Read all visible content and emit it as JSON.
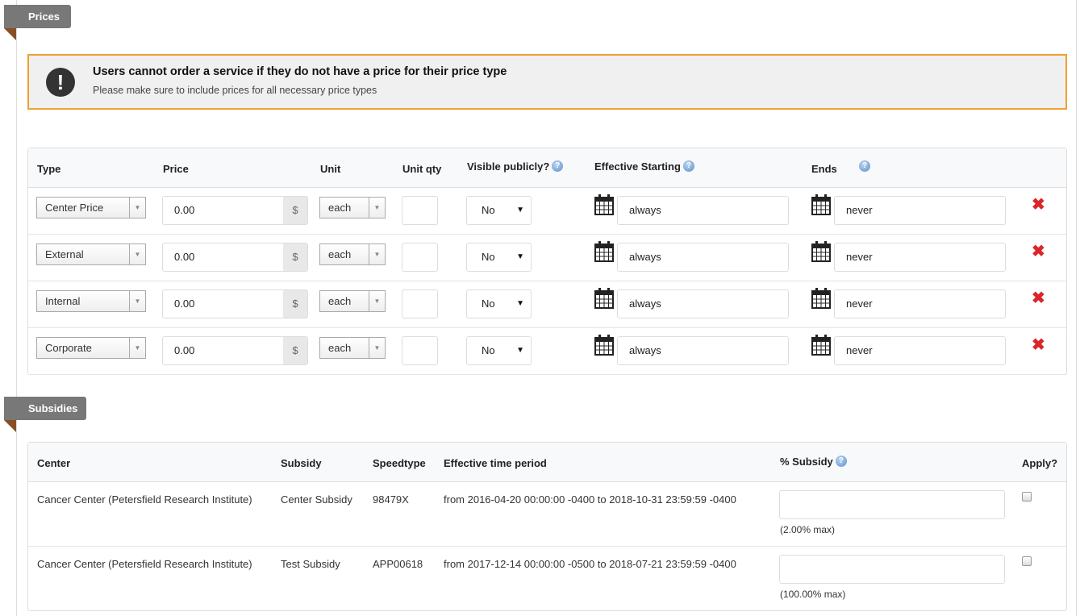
{
  "prices_section": {
    "title": "Prices"
  },
  "alert": {
    "icon": "exclamation-icon",
    "title": "Users cannot order a service if they do not have a price for their price type",
    "message": "Please make sure to include prices for all necessary price types"
  },
  "prices_table": {
    "headers": {
      "type": "Type",
      "price": "Price",
      "unit": "Unit",
      "unit_qty": "Unit qty",
      "visible": "Visible publicly?",
      "effective": "Effective Starting",
      "ends": "Ends"
    },
    "currency_symbol": "$",
    "rows": [
      {
        "type": "Center Price",
        "price": "0.00",
        "unit": "each",
        "unit_qty": "",
        "visible": "No",
        "starting": "always",
        "ends": "never"
      },
      {
        "type": "External",
        "price": "0.00",
        "unit": "each",
        "unit_qty": "",
        "visible": "No",
        "starting": "always",
        "ends": "never"
      },
      {
        "type": "Internal",
        "price": "0.00",
        "unit": "each",
        "unit_qty": "",
        "visible": "No",
        "starting": "always",
        "ends": "never"
      },
      {
        "type": "Corporate",
        "price": "0.00",
        "unit": "each",
        "unit_qty": "",
        "visible": "No",
        "starting": "always",
        "ends": "never"
      }
    ]
  },
  "subsidies_section": {
    "title": "Subsidies"
  },
  "subsidies_table": {
    "headers": {
      "center": "Center",
      "subsidy": "Subsidy",
      "speedtype": "Speedtype",
      "period": "Effective time period",
      "pct": "% Subsidy",
      "apply": "Apply?"
    },
    "rows": [
      {
        "center": "Cancer Center (Petersfield Research Institute)",
        "subsidy": "Center Subsidy",
        "speedtype": "98479X",
        "period": "from 2016-04-20 00:00:00 -0400 to 2018-10-31 23:59:59 -0400",
        "pct": "",
        "max": "(2.00% max)",
        "apply": false
      },
      {
        "center": "Cancer Center (Petersfield Research Institute)",
        "subsidy": "Test Subsidy",
        "speedtype": "APP00618",
        "period": "from 2017-12-14 00:00:00 -0500 to 2018-07-21 23:59:59 -0400",
        "pct": "",
        "max": "(100.00% max)",
        "apply": false
      }
    ]
  },
  "colors": {
    "alert_border": "#f0a030",
    "tab_bg": "#787878",
    "ribbon": "#8a4f25",
    "delete": "#d9262b"
  }
}
